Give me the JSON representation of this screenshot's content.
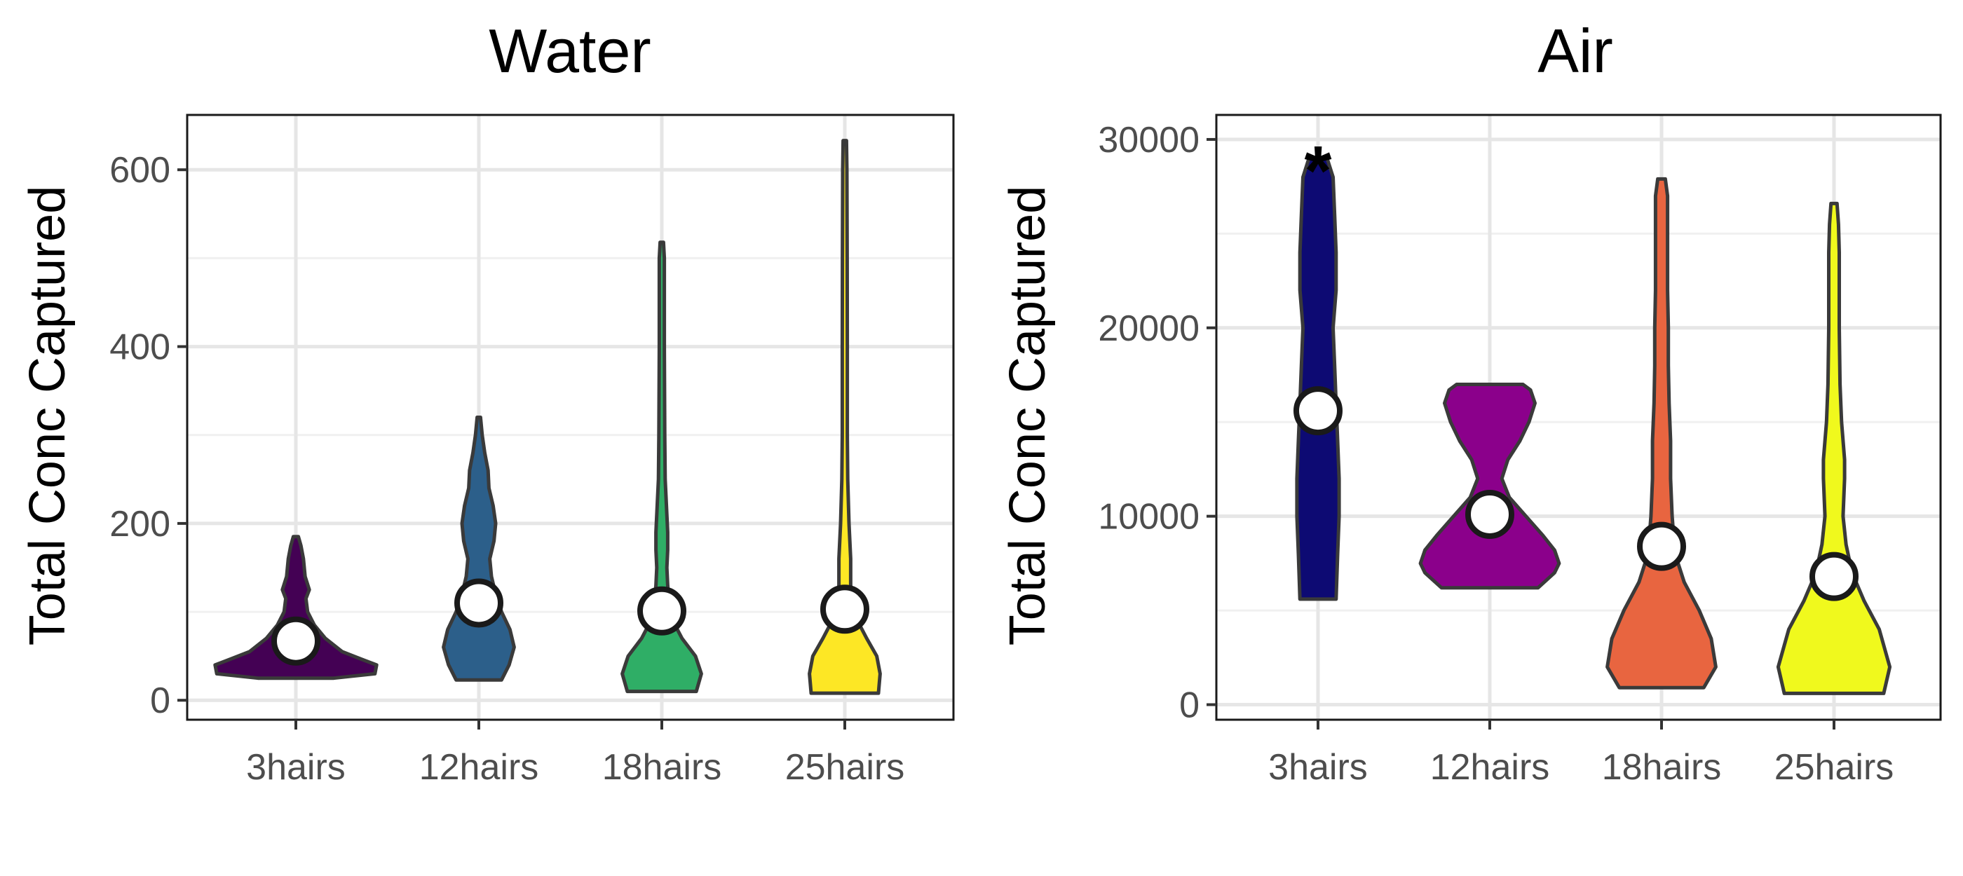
{
  "chart_data": [
    {
      "type": "violin",
      "title": "Water",
      "ylabel": "Total Conc Captured",
      "xlabel": "",
      "categories": [
        "3hairs",
        "12hairs",
        "18hairs",
        "25hairs"
      ],
      "colors": [
        "#440154",
        "#2c5f8a",
        "#2fae66",
        "#fde725"
      ],
      "ylim": [
        -22,
        662
      ],
      "yticks": [
        0,
        200,
        400,
        600
      ],
      "ytick_labels": [
        "0",
        "200",
        "400",
        "600"
      ],
      "grid": true,
      "means": [
        67,
        110,
        101,
        103
      ],
      "annotations": [],
      "series": [
        {
          "category": "3hairs",
          "profile": [
            [
              25,
              0.45
            ],
            [
              30,
              0.94
            ],
            [
              40,
              0.96
            ],
            [
              45,
              0.82
            ],
            [
              55,
              0.55
            ],
            [
              70,
              0.35
            ],
            [
              85,
              0.22
            ],
            [
              100,
              0.14
            ],
            [
              115,
              0.12
            ],
            [
              125,
              0.16
            ],
            [
              140,
              0.11
            ],
            [
              160,
              0.09
            ],
            [
              175,
              0.06
            ],
            [
              185,
              0.03
            ]
          ]
        },
        {
          "category": "12hairs",
          "profile": [
            [
              23,
              0.27
            ],
            [
              40,
              0.36
            ],
            [
              60,
              0.42
            ],
            [
              80,
              0.37
            ],
            [
              100,
              0.27
            ],
            [
              120,
              0.2
            ],
            [
              140,
              0.15
            ],
            [
              160,
              0.13
            ],
            [
              180,
              0.18
            ],
            [
              200,
              0.2
            ],
            [
              220,
              0.17
            ],
            [
              240,
              0.12
            ],
            [
              260,
              0.11
            ],
            [
              280,
              0.07
            ],
            [
              300,
              0.04
            ],
            [
              320,
              0.02
            ]
          ]
        },
        {
          "category": "18hairs",
          "profile": [
            [
              10,
              0.41
            ],
            [
              30,
              0.47
            ],
            [
              50,
              0.4
            ],
            [
              70,
              0.24
            ],
            [
              90,
              0.13
            ],
            [
              110,
              0.09
            ],
            [
              130,
              0.07
            ],
            [
              150,
              0.06
            ],
            [
              170,
              0.07
            ],
            [
              190,
              0.07
            ],
            [
              210,
              0.06
            ],
            [
              250,
              0.04
            ],
            [
              300,
              0.035
            ],
            [
              400,
              0.03
            ],
            [
              450,
              0.03
            ],
            [
              500,
              0.03
            ],
            [
              518,
              0.02
            ]
          ]
        },
        {
          "category": "25hairs",
          "profile": [
            [
              8,
              0.4
            ],
            [
              30,
              0.42
            ],
            [
              50,
              0.38
            ],
            [
              70,
              0.26
            ],
            [
              90,
              0.15
            ],
            [
              110,
              0.09
            ],
            [
              130,
              0.07
            ],
            [
              160,
              0.07
            ],
            [
              180,
              0.06
            ],
            [
              200,
              0.05
            ],
            [
              250,
              0.035
            ],
            [
              300,
              0.03
            ],
            [
              400,
              0.03
            ],
            [
              500,
              0.028
            ],
            [
              600,
              0.025
            ],
            [
              633,
              0.02
            ]
          ]
        }
      ]
    },
    {
      "type": "violin",
      "title": "Air",
      "ylabel": "Total Conc Captured",
      "xlabel": "",
      "categories": [
        "3hairs",
        "12hairs",
        "18hairs",
        "25hairs"
      ],
      "colors": [
        "#0d0a73",
        "#8b008b",
        "#e86540",
        "#f0f91d"
      ],
      "ylim": [
        -800,
        31300
      ],
      "yticks": [
        0,
        10000,
        20000,
        30000
      ],
      "ytick_labels": [
        "0",
        "10000",
        "20000",
        "30000"
      ],
      "grid": true,
      "means": [
        15600,
        10100,
        8400,
        6800
      ],
      "annotations": [
        {
          "text": "*",
          "category": "3hairs"
        }
      ],
      "series": [
        {
          "category": "3hairs",
          "profile": [
            [
              5600,
              0.12
            ],
            [
              8000,
              0.13
            ],
            [
              10000,
              0.14
            ],
            [
              12000,
              0.14
            ],
            [
              14000,
              0.13
            ],
            [
              16000,
              0.12
            ],
            [
              18000,
              0.11
            ],
            [
              20000,
              0.1
            ],
            [
              22000,
              0.12
            ],
            [
              24000,
              0.12
            ],
            [
              26000,
              0.11
            ],
            [
              28000,
              0.1
            ],
            [
              29000,
              0.06
            ]
          ]
        },
        {
          "category": "12hairs",
          "profile": [
            [
              6200,
              0.32
            ],
            [
              7000,
              0.43
            ],
            [
              7500,
              0.46
            ],
            [
              8200,
              0.43
            ],
            [
              9000,
              0.35
            ],
            [
              10000,
              0.24
            ],
            [
              11000,
              0.13
            ],
            [
              12000,
              0.08
            ],
            [
              13000,
              0.12
            ],
            [
              14000,
              0.2
            ],
            [
              15000,
              0.26
            ],
            [
              16000,
              0.3
            ],
            [
              16700,
              0.27
            ],
            [
              17000,
              0.22
            ]
          ]
        },
        {
          "category": "18hairs",
          "profile": [
            [
              900,
              0.28
            ],
            [
              2000,
              0.36
            ],
            [
              3500,
              0.33
            ],
            [
              5000,
              0.25
            ],
            [
              6500,
              0.15
            ],
            [
              8000,
              0.09
            ],
            [
              10000,
              0.07
            ],
            [
              12000,
              0.06
            ],
            [
              14000,
              0.06
            ],
            [
              16000,
              0.05
            ],
            [
              18000,
              0.045
            ],
            [
              20000,
              0.045
            ],
            [
              22000,
              0.04
            ],
            [
              25000,
              0.04
            ],
            [
              27000,
              0.04
            ],
            [
              27900,
              0.025
            ]
          ]
        },
        {
          "category": "25hairs",
          "profile": [
            [
              600,
              0.33
            ],
            [
              2000,
              0.37
            ],
            [
              4000,
              0.3
            ],
            [
              5500,
              0.2
            ],
            [
              7000,
              0.12
            ],
            [
              8500,
              0.08
            ],
            [
              10000,
              0.06
            ],
            [
              12000,
              0.07
            ],
            [
              13000,
              0.07
            ],
            [
              15000,
              0.05
            ],
            [
              17000,
              0.04
            ],
            [
              20000,
              0.035
            ],
            [
              22000,
              0.035
            ],
            [
              24000,
              0.035
            ],
            [
              25500,
              0.03
            ],
            [
              26600,
              0.02
            ]
          ]
        }
      ]
    }
  ]
}
